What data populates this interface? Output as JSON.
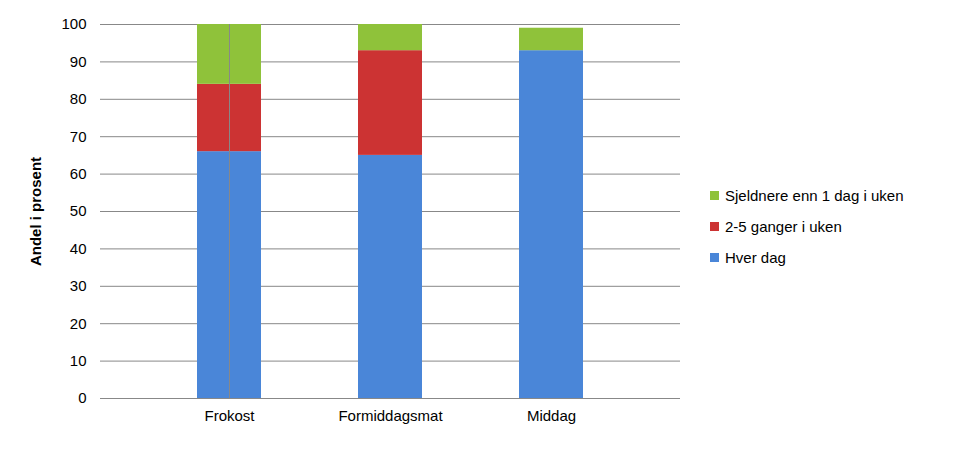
{
  "chart_data": {
    "type": "bar",
    "stacked": true,
    "y_label": "Andel i prosent",
    "categories": [
      "Frokost",
      "Formiddagsmat",
      "Middag"
    ],
    "series": [
      {
        "name": "Hver dag",
        "color": "#4a86d8",
        "values": [
          66,
          65,
          93
        ]
      },
      {
        "name": "2-5 ganger i uken",
        "color": "#cc3333",
        "values": [
          18,
          28,
          0
        ]
      },
      {
        "name": "Sjeldnere enn 1 dag i uken",
        "color": "#8fc23a",
        "values": [
          16,
          7,
          6
        ]
      }
    ],
    "ylim": [
      0,
      100
    ],
    "yticks": [
      0,
      10,
      20,
      30,
      40,
      50,
      60,
      70,
      80,
      90,
      100
    ],
    "grid": true,
    "legend": "right"
  }
}
